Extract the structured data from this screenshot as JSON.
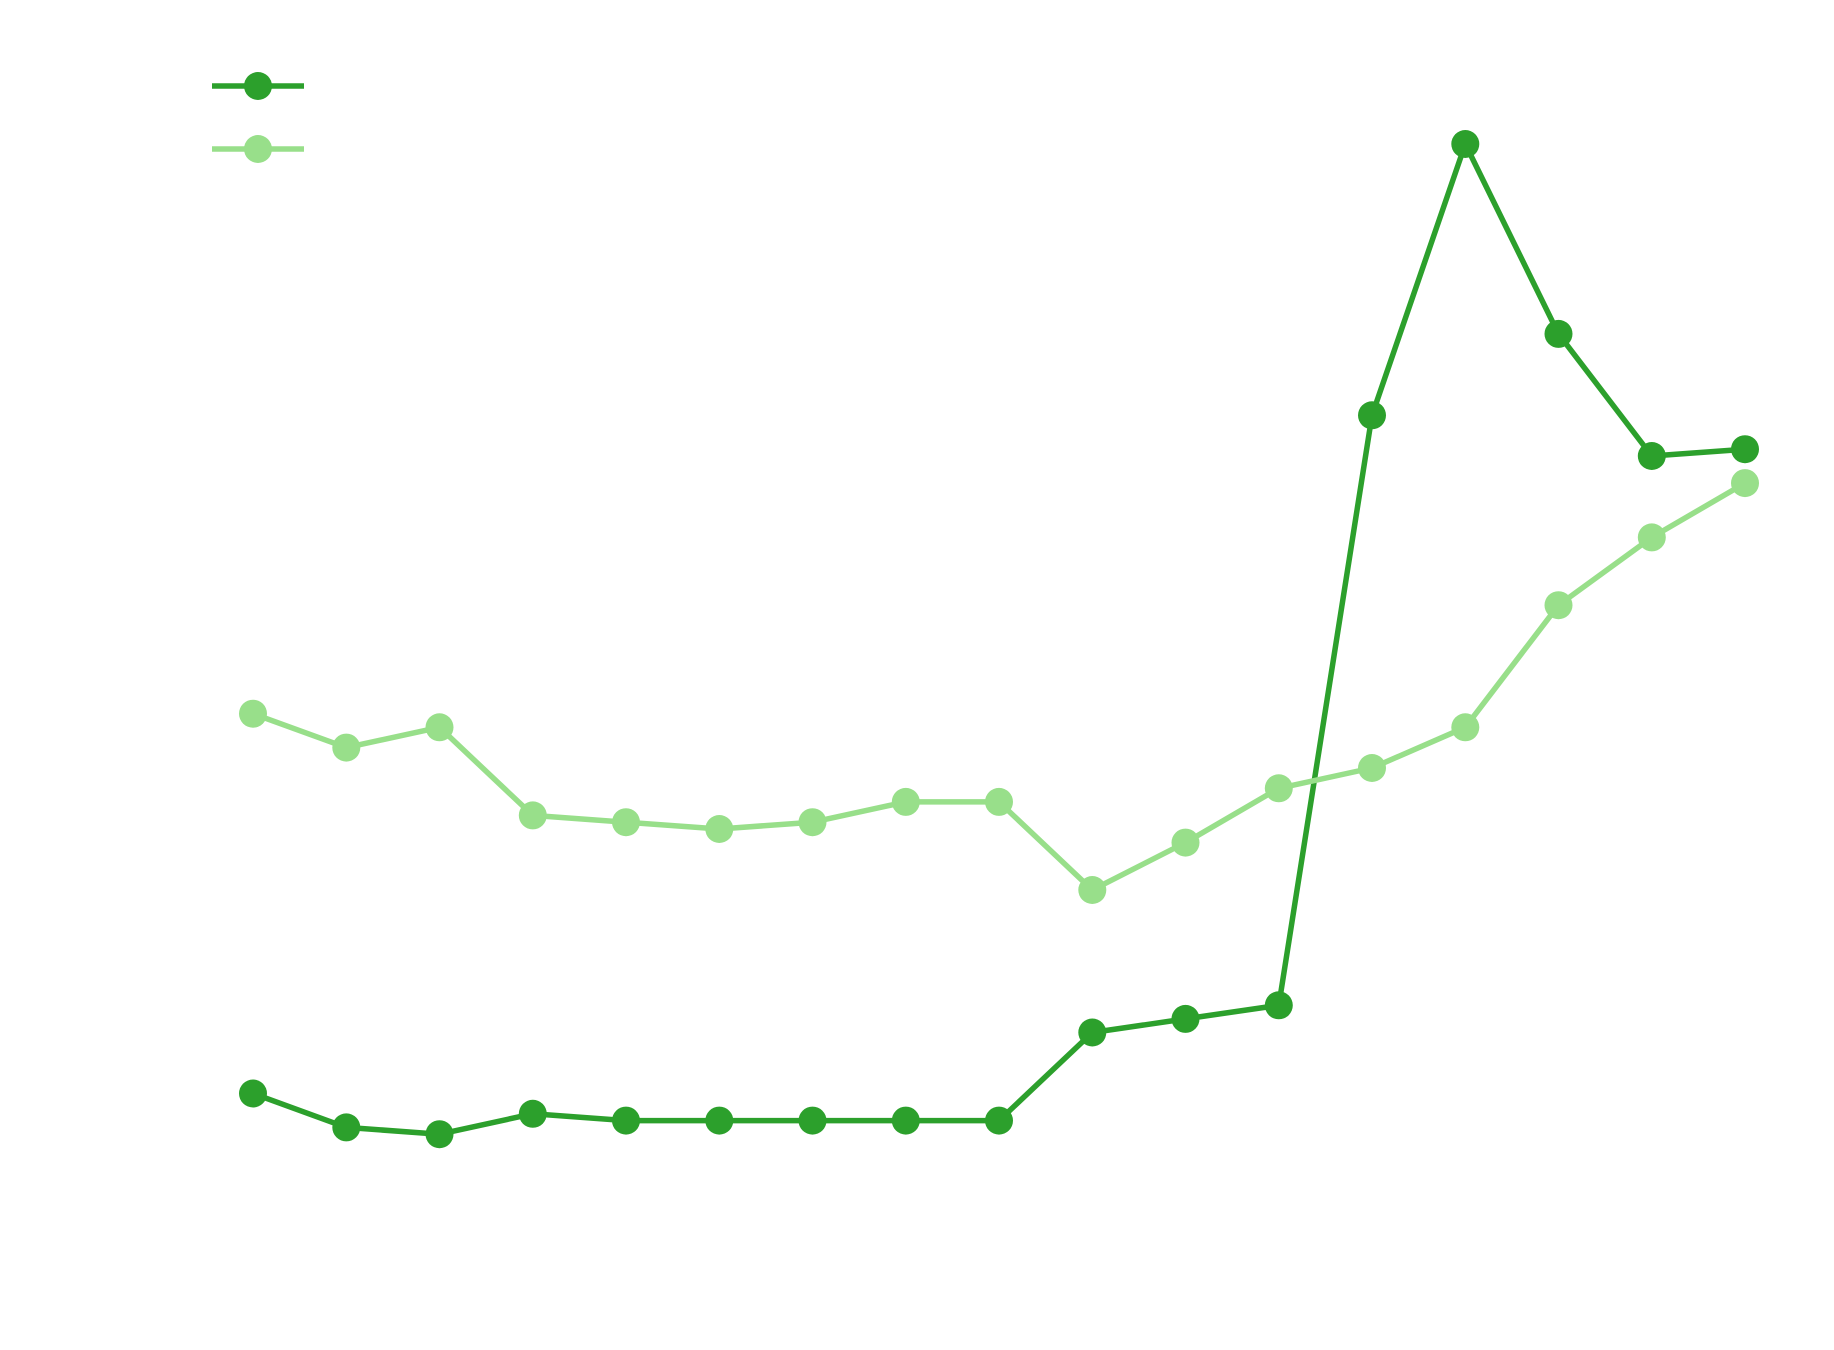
{
  "chart_data": {
    "type": "line",
    "title": "",
    "xlabel": "",
    "ylabel": "",
    "grid": false,
    "legend": {
      "placement": "top-left",
      "show_labels": false
    },
    "x": [
      1,
      2,
      3,
      4,
      5,
      6,
      7,
      8,
      9,
      10,
      11,
      12,
      13,
      14,
      15,
      16,
      17
    ],
    "xlim": [
      0.75,
      17.25
    ],
    "ylim": [
      3,
      19.5
    ],
    "series": [
      {
        "color": "#2ca02c",
        "marker": "circle",
        "values": [
          4.6,
          4.1,
          4.0,
          4.3,
          4.2,
          4.2,
          4.2,
          4.2,
          4.2,
          5.5,
          5.7,
          5.9,
          14.6,
          18.6,
          15.8,
          14.0,
          14.1
        ]
      },
      {
        "color": "#98df8a",
        "marker": "circle",
        "values": [
          10.2,
          9.7,
          10.0,
          8.7,
          8.6,
          8.5,
          8.6,
          8.9,
          8.9,
          7.6,
          8.3,
          9.1,
          9.4,
          10.0,
          11.8,
          12.8,
          13.6
        ]
      }
    ]
  }
}
